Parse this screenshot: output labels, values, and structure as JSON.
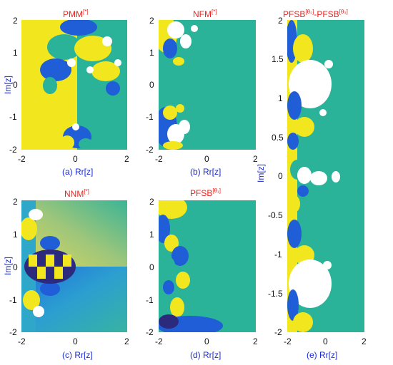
{
  "chart_data": [
    {
      "type": "heatmap",
      "id": "a",
      "title": "PMM",
      "title_sup": "[*]",
      "caption": "(a)  Rr[z]",
      "ylabel": "Im[z]",
      "xlim": [
        -2,
        2
      ],
      "ylim": [
        -2,
        2
      ],
      "x_ticks": [
        "-2",
        "0",
        "2"
      ],
      "y_ticks": [
        "2",
        "1",
        "0",
        "-1",
        "-2"
      ],
      "colors": {
        "teal": "#2bb39a",
        "yellow": "#f2e61e",
        "blue": "#1f5ed6",
        "navy": "#2c2a7c",
        "white": "#ffffff",
        "cyan": "#27a9e0"
      }
    },
    {
      "type": "heatmap",
      "id": "b",
      "title": "NFM",
      "title_sup": "[*]",
      "caption": "(b)  Rr[z]",
      "ylabel": "",
      "xlim": [
        -2,
        2
      ],
      "ylim": [
        -2,
        2
      ],
      "x_ticks": [
        "-2",
        "0",
        "2"
      ],
      "y_ticks": [
        "2",
        "1",
        "0",
        "-1",
        "-2"
      ]
    },
    {
      "type": "heatmap",
      "id": "c",
      "title": "NNM",
      "title_sup": "[*]",
      "caption": "(c)  Rr[z]",
      "ylabel": "Im[z]",
      "xlim": [
        -2,
        2
      ],
      "ylim": [
        -2,
        2
      ],
      "x_ticks": [
        "-2",
        "0",
        "2"
      ],
      "y_ticks": [
        "2",
        "1",
        "0",
        "-1",
        "-2"
      ]
    },
    {
      "type": "heatmap",
      "id": "d",
      "title": "PFSB",
      "title_sup": "[θ₁]",
      "caption": "(d)  Rr[z]",
      "ylabel": "",
      "xlim": [
        -2,
        2
      ],
      "ylim": [
        -2,
        2
      ],
      "x_ticks": [
        "-2",
        "0",
        "2"
      ],
      "y_ticks": [
        "2",
        "1",
        "0",
        "-1",
        "-2"
      ]
    },
    {
      "type": "heatmap",
      "id": "e",
      "title": "PFSB",
      "title_sup": "[θ₂]",
      "title_mid": "-PFSB",
      "title_sup2": "[θ₃]",
      "caption": "(e)  Rr[z]",
      "ylabel": "Im[z]",
      "xlim": [
        -2,
        2
      ],
      "ylim": [
        -2,
        2
      ],
      "x_ticks": [
        "-2",
        "0",
        "2"
      ],
      "y_ticks": [
        "2",
        "1.5",
        "1",
        "0.5",
        "0",
        "-0.5",
        "-1",
        "-1.5",
        "-2"
      ]
    }
  ]
}
